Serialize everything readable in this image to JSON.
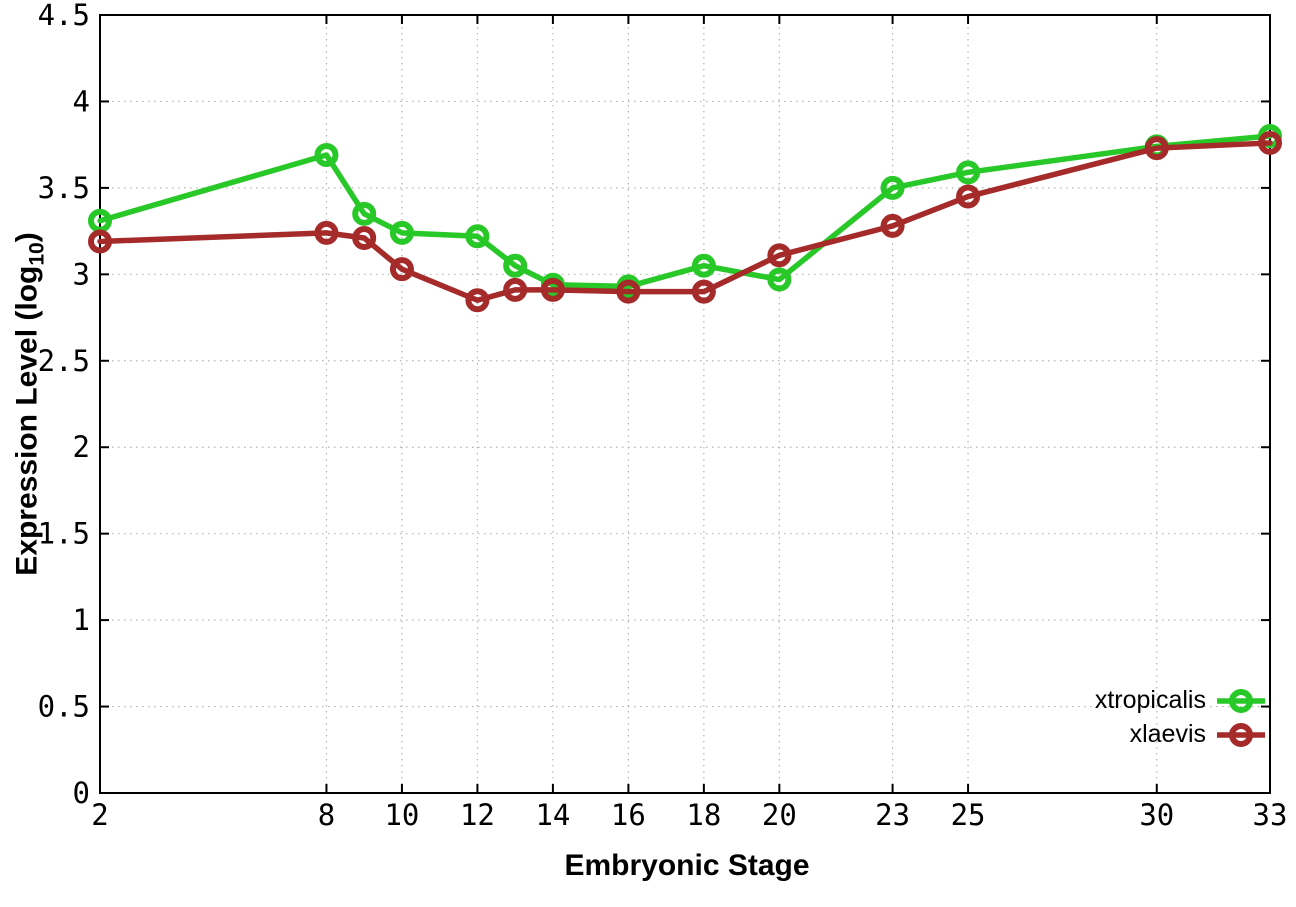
{
  "chart_data": {
    "type": "line",
    "title": "",
    "xlabel": "Embryonic Stage",
    "ylabel": "Expression Level (log10)",
    "ylabel_parts": {
      "base": "Expression Level (log",
      "sub": "10",
      "close": ")"
    },
    "x": [
      2,
      8,
      9,
      10,
      12,
      13,
      14,
      16,
      18,
      20,
      23,
      25,
      30,
      33
    ],
    "xlim": [
      2,
      33
    ],
    "ylim": [
      0,
      4.5
    ],
    "xticks": [
      2,
      8,
      10,
      12,
      14,
      16,
      18,
      20,
      23,
      25,
      30,
      33
    ],
    "xtick_labels": [
      "2",
      "8",
      "10",
      "12",
      "14",
      "16",
      "18",
      "20",
      "23",
      "25",
      "30",
      "33"
    ],
    "yticks": [
      0,
      0.5,
      1,
      1.5,
      2,
      2.5,
      3,
      3.5,
      4,
      4.5
    ],
    "ytick_labels": [
      "0",
      "0.5",
      "1",
      "1.5",
      "2",
      "2.5",
      "3",
      "3.5",
      "4",
      "4.5"
    ],
    "grid": true,
    "grid_style": "dotted",
    "grid_color": "#b3b3b3",
    "border_color": "#000000",
    "marker": "open-circle",
    "legend_position": "bottom-right-inside",
    "series": [
      {
        "name": "xtropicalis",
        "color": "#27c827",
        "values": [
          3.31,
          3.69,
          3.35,
          3.24,
          3.22,
          3.05,
          2.94,
          2.93,
          3.05,
          2.97,
          3.5,
          3.59,
          3.74,
          3.8
        ]
      },
      {
        "name": "xlaevis",
        "color": "#a52a2a",
        "values": [
          3.19,
          3.24,
          3.21,
          3.03,
          2.85,
          2.91,
          2.91,
          2.9,
          2.9,
          3.11,
          3.28,
          3.45,
          3.73,
          3.76
        ]
      }
    ]
  }
}
